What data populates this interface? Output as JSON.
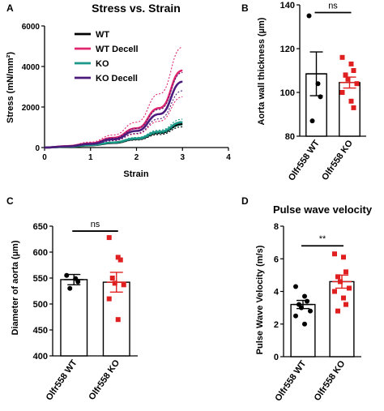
{
  "chart_data": [
    {
      "panel": "A",
      "type": "line",
      "title": "Stress vs. Strain",
      "xlabel": "Strain",
      "ylabel": "Stress (mN/mm²)",
      "xlim": [
        0,
        4
      ],
      "ylim": [
        0,
        6000
      ],
      "xticks": [
        0,
        1,
        2,
        3,
        4
      ],
      "yticks": [
        0,
        2000,
        4000,
        6000
      ],
      "legend_position": "top-left",
      "series": [
        {
          "name": "WT",
          "color": "#000000",
          "x": [
            0,
            0.5,
            1,
            1.5,
            2,
            2.5,
            3
          ],
          "y": [
            0,
            40,
            110,
            230,
            420,
            720,
            1150
          ],
          "band": [
            [
              0,
              0
            ],
            [
              35,
              45
            ],
            [
              95,
              125
            ],
            [
              200,
              260
            ],
            [
              370,
              470
            ],
            [
              640,
              800
            ],
            [
              1020,
              1280
            ]
          ]
        },
        {
          "name": "WT Decell",
          "color": "#e0266e",
          "x": [
            0,
            0.5,
            1,
            1.5,
            2,
            2.5,
            3
          ],
          "y": [
            0,
            70,
            210,
            480,
            950,
            1950,
            3800
          ],
          "band": [
            [
              0,
              0
            ],
            [
              50,
              90
            ],
            [
              150,
              270
            ],
            [
              340,
              620
            ],
            [
              670,
              1250
            ],
            [
              1300,
              2650
            ],
            [
              2500,
              4950
            ]
          ]
        },
        {
          "name": "KO",
          "color": "#1a9988",
          "x": [
            0,
            0.5,
            1,
            1.5,
            2,
            2.5,
            3
          ],
          "y": [
            0,
            45,
            120,
            250,
            450,
            780,
            1250
          ],
          "band": [
            [
              0,
              0
            ],
            [
              40,
              50
            ],
            [
              105,
              135
            ],
            [
              220,
              280
            ],
            [
              400,
              500
            ],
            [
              700,
              860
            ],
            [
              1100,
              1400
            ]
          ]
        },
        {
          "name": "KO Decell",
          "color": "#4b1a7a",
          "x": [
            0,
            0.5,
            1,
            1.5,
            2,
            2.5,
            3
          ],
          "y": [
            0,
            60,
            180,
            410,
            820,
            1650,
            3250
          ],
          "band": [
            [
              0,
              0
            ],
            [
              50,
              70
            ],
            [
              150,
              210
            ],
            [
              350,
              470
            ],
            [
              700,
              940
            ],
            [
              1420,
              1880
            ],
            [
              2800,
              3700
            ]
          ]
        }
      ]
    },
    {
      "panel": "B",
      "type": "bar",
      "title": "",
      "xlabel": "",
      "ylabel": "Aorta wall thickness (µm)",
      "ylim": [
        80,
        140
      ],
      "yticks": [
        80,
        100,
        120,
        140
      ],
      "categories": [
        "Olfr558 WT",
        "Olfr558 KO"
      ],
      "colors": [
        "#000000",
        "#e02020"
      ],
      "values": [
        108.5,
        104.5
      ],
      "sem": [
        10,
        2.5
      ],
      "points": [
        [
          135,
          104,
          98,
          87
        ],
        [
          116,
          113,
          110,
          108,
          106,
          104,
          100,
          96,
          93
        ]
      ],
      "significance": "ns"
    },
    {
      "panel": "C",
      "type": "bar",
      "title": "",
      "xlabel": "",
      "ylabel": "Diameter of aorta (µm)",
      "ylim": [
        400,
        650
      ],
      "yticks": [
        400,
        450,
        500,
        550,
        600,
        650
      ],
      "categories": [
        "Olfr558 WT",
        "Olfr558 KO"
      ],
      "colors": [
        "#000000",
        "#e02020"
      ],
      "values": [
        547,
        542
      ],
      "sem": [
        10,
        19
      ],
      "points": [
        [
          555,
          549,
          543,
          530
        ],
        [
          628,
          590,
          585,
          550,
          540,
          537,
          510,
          470
        ]
      ],
      "significance": "ns"
    },
    {
      "panel": "D",
      "type": "bar",
      "title": "Pulse wave velocity",
      "xlabel": "",
      "ylabel": "Pulse Wave Velocity (m/s)",
      "ylim": [
        0,
        8
      ],
      "yticks": [
        0,
        2,
        4,
        6,
        8
      ],
      "categories": [
        "Olfr558 WT",
        "Olfr558 KO"
      ],
      "colors": [
        "#000000",
        "#e02020"
      ],
      "values": [
        3.2,
        4.6
      ],
      "sem": [
        0.25,
        0.4
      ],
      "points": [
        [
          4.3,
          3.7,
          3.4,
          3.2,
          3.0,
          2.8,
          2.5,
          2.0
        ],
        [
          6.3,
          6.1,
          5.2,
          4.9,
          4.6,
          4.2,
          4.0,
          3.6,
          3.2,
          2.8
        ]
      ],
      "significance": "**"
    }
  ],
  "panel_letters": [
    "A",
    "B",
    "C",
    "D"
  ]
}
